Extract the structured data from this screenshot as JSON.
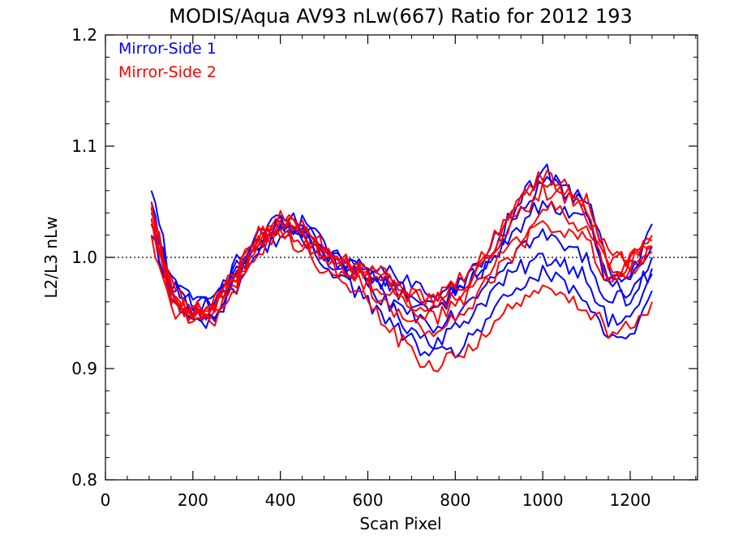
{
  "chart_data": {
    "type": "line",
    "title": "MODIS/Aqua AV93 nLw(667) Ratio for 2012 193",
    "xlabel": "Scan Pixel",
    "ylabel": "L2/L3 nLw",
    "xlim": [
      0,
      1354
    ],
    "ylim": [
      0.8,
      1.2
    ],
    "xticks": [
      0,
      200,
      400,
      600,
      800,
      1000,
      1200
    ],
    "yticks": [
      0.8,
      0.9,
      1.0,
      1.1,
      1.2
    ],
    "xtick_labels": [
      "0",
      "200",
      "400",
      "600",
      "800",
      "1000",
      "1200"
    ],
    "ytick_labels": [
      "0.8",
      "0.9",
      "1.0",
      "1.1",
      "1.2"
    ],
    "reference_line": 1.0,
    "legend": {
      "placement": "top-left",
      "entries": [
        {
          "label": "Mirror-Side 1",
          "color": "#0000ff"
        },
        {
          "label": "Mirror-Side 2",
          "color": "#ff0000"
        }
      ]
    },
    "x": [
      105,
      150,
      200,
      250,
      300,
      350,
      400,
      450,
      500,
      550,
      600,
      650,
      700,
      750,
      800,
      850,
      900,
      950,
      1000,
      1050,
      1100,
      1150,
      1200,
      1250
    ],
    "series": [
      {
        "name": "Mirror-Side 1",
        "color": "#0000ff",
        "values": [
          1.05,
          0.97,
          0.945,
          0.955,
          0.985,
          1.02,
          1.03,
          1.025,
          1.005,
          0.99,
          0.975,
          0.955,
          0.935,
          0.925,
          0.935,
          0.955,
          0.975,
          0.99,
          1.0,
          0.995,
          0.985,
          0.94,
          0.945,
          0.985
        ]
      },
      {
        "name": "Mirror-Side 1",
        "color": "#0000ff",
        "values": [
          1.03,
          0.96,
          0.955,
          0.96,
          0.99,
          1.01,
          1.025,
          1.02,
          1.0,
          0.985,
          0.985,
          0.975,
          0.96,
          0.955,
          0.965,
          0.985,
          1.01,
          1.04,
          1.07,
          1.065,
          1.04,
          0.98,
          0.985,
          1.01
        ]
      },
      {
        "name": "Mirror-Side 1",
        "color": "#0000ff",
        "values": [
          1.04,
          0.975,
          0.96,
          0.965,
          0.995,
          1.015,
          1.035,
          1.03,
          1.01,
          0.995,
          0.98,
          0.96,
          0.95,
          0.94,
          0.95,
          0.97,
          0.99,
          1.01,
          1.02,
          1.01,
          1.0,
          0.96,
          0.965,
          0.99
        ]
      },
      {
        "name": "Mirror-Side 1",
        "color": "#0000ff",
        "values": [
          1.06,
          0.98,
          0.95,
          0.95,
          0.98,
          1.015,
          1.025,
          1.03,
          1.005,
          0.995,
          0.99,
          0.985,
          0.975,
          0.965,
          0.975,
          0.99,
          1.02,
          1.05,
          1.08,
          1.06,
          1.055,
          0.99,
          0.975,
          1.03
        ]
      },
      {
        "name": "Mirror-Side 1",
        "color": "#0000ff",
        "values": [
          1.02,
          0.965,
          0.94,
          0.945,
          0.975,
          1.005,
          1.02,
          1.015,
          0.995,
          0.98,
          0.96,
          0.94,
          0.925,
          0.91,
          0.915,
          0.935,
          0.955,
          0.975,
          0.985,
          0.975,
          0.96,
          0.925,
          0.93,
          0.97
        ]
      },
      {
        "name": "Mirror-Side 1",
        "color": "#0000ff",
        "values": [
          1.045,
          0.975,
          0.955,
          0.96,
          0.99,
          1.02,
          1.03,
          1.025,
          1.01,
          0.99,
          0.985,
          0.98,
          0.965,
          0.96,
          0.97,
          0.985,
          1.005,
          1.03,
          1.05,
          1.045,
          1.035,
          0.975,
          0.97,
          1.0
        ]
      },
      {
        "name": "Mirror-Side 2",
        "color": "#ff0000",
        "values": [
          1.04,
          0.965,
          0.95,
          0.955,
          0.985,
          1.015,
          1.03,
          1.02,
          1.005,
          0.99,
          0.985,
          0.975,
          0.96,
          0.95,
          0.965,
          0.985,
          1.015,
          1.05,
          1.075,
          1.06,
          1.045,
          0.99,
          0.995,
          1.015
        ]
      },
      {
        "name": "Mirror-Side 2",
        "color": "#ff0000",
        "values": [
          1.03,
          0.96,
          0.945,
          0.95,
          0.98,
          1.01,
          1.025,
          1.015,
          0.995,
          0.985,
          0.975,
          0.955,
          0.94,
          0.93,
          0.945,
          0.965,
          0.99,
          1.01,
          1.03,
          1.025,
          1.015,
          0.975,
          0.985,
          1.005
        ]
      },
      {
        "name": "Mirror-Side 2",
        "color": "#ff0000",
        "values": [
          1.05,
          0.975,
          0.955,
          0.96,
          0.99,
          1.02,
          1.035,
          1.03,
          1.01,
          0.995,
          0.99,
          0.985,
          0.97,
          0.96,
          0.975,
          0.995,
          1.025,
          1.055,
          1.07,
          1.065,
          1.05,
          1.0,
          1.0,
          1.02
        ]
      },
      {
        "name": "Mirror-Side 2",
        "color": "#ff0000",
        "values": [
          1.02,
          0.955,
          0.94,
          0.945,
          0.975,
          1.005,
          1.02,
          1.01,
          0.99,
          0.975,
          0.96,
          0.935,
          0.915,
          0.9,
          0.91,
          0.925,
          0.945,
          0.96,
          0.97,
          0.965,
          0.955,
          0.935,
          0.94,
          0.96
        ]
      },
      {
        "name": "Mirror-Side 2",
        "color": "#ff0000",
        "values": [
          1.035,
          0.965,
          0.95,
          0.955,
          0.985,
          1.015,
          1.03,
          1.02,
          1.0,
          0.99,
          0.98,
          0.97,
          0.955,
          0.945,
          0.955,
          0.975,
          1.0,
          1.02,
          1.045,
          1.04,
          1.025,
          0.985,
          0.99,
          1.01
        ]
      },
      {
        "name": "Mirror-Side 2",
        "color": "#ff0000",
        "values": [
          1.045,
          0.97,
          0.945,
          0.955,
          0.99,
          1.02,
          1.03,
          1.025,
          1.005,
          0.995,
          0.99,
          0.98,
          0.965,
          0.96,
          0.97,
          0.99,
          1.015,
          1.04,
          1.06,
          1.055,
          1.04,
          0.995,
          1.0,
          1.01
        ]
      }
    ]
  }
}
